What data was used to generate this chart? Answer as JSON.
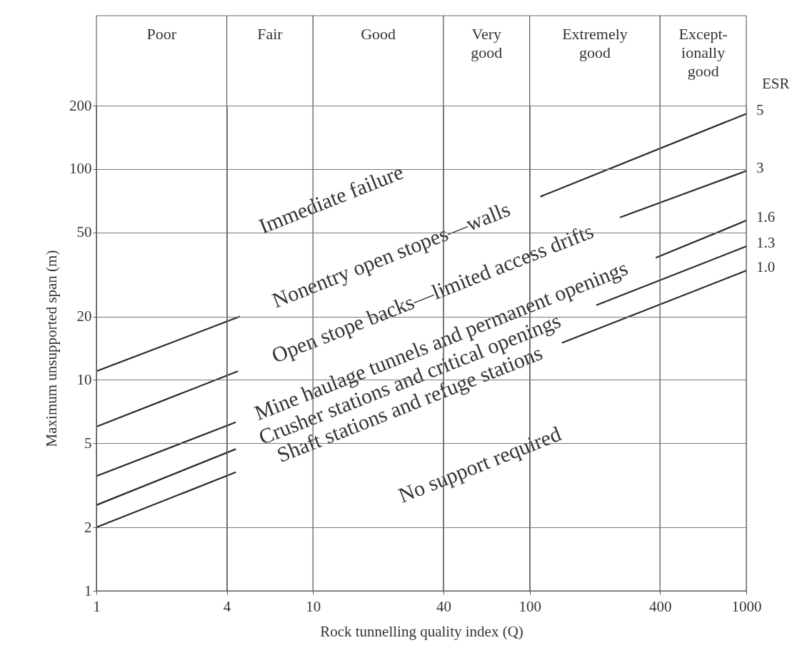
{
  "chart_data": {
    "type": "line",
    "xlabel": "Rock tunnelling quality index (Q)",
    "ylabel": "Maximum unsupported span (m)",
    "legend_title": "ESR",
    "log": "xy",
    "xlim": [
      1,
      1000
    ],
    "ylim": [
      1,
      200
    ],
    "xticks": [
      1,
      4,
      10,
      40,
      100,
      400,
      {
        "value": 1000,
        "label": "1000"
      }
    ],
    "yticks": [
      1,
      2,
      5,
      10,
      20,
      50,
      100,
      200
    ],
    "grid": true,
    "series": [
      {
        "name": "5",
        "color": "#2b2b2b",
        "x": [
          1,
          4.6,
          20,
          112,
          1000
        ],
        "values": [
          11,
          20,
          null,
          74,
          183
        ]
      },
      {
        "name": "3",
        "color": "#2b2b2b",
        "x": [
          1,
          4.5,
          20,
          261,
          1000
        ],
        "values": [
          6,
          11,
          null,
          59,
          98
        ]
      },
      {
        "name": "1.6",
        "color": "#2b2b2b",
        "x": [
          1,
          4.4,
          20,
          382,
          1000
        ],
        "values": [
          3.5,
          6.3,
          null,
          38,
          57
        ]
      },
      {
        "name": "1.3",
        "color": "#2b2b2b",
        "x": [
          1,
          4.4,
          20,
          203,
          1000
        ],
        "values": [
          2.55,
          4.7,
          null,
          22.6,
          43
        ]
      },
      {
        "name": "1.0",
        "color": "#2b2b2b",
        "x": [
          1,
          4.4,
          20,
          141,
          1000
        ],
        "values": [
          2,
          3.65,
          null,
          15,
          33
        ]
      }
    ],
    "annotations": [
      "Immediate failure",
      "Nonentry open stopes—walls",
      "Open stope backs—limited access drifts",
      "Mine haulage tunnels and permanent openings",
      "Crusher stations and critical openings",
      "Shaft stations and refuge stations",
      "No support required"
    ],
    "bands": [
      {
        "axis": "x",
        "from": 1,
        "to": 4,
        "label": "Poor"
      },
      {
        "axis": "x",
        "from": 4,
        "to": 10,
        "label": "Fair"
      },
      {
        "axis": "x",
        "from": 10,
        "to": 40,
        "label": "Good"
      },
      {
        "axis": "x",
        "from": 40,
        "to": 100,
        "label": "Very\ngood"
      },
      {
        "axis": "x",
        "from": 100,
        "to": 400,
        "label": "Extremely\ngood"
      },
      {
        "axis": "x",
        "from": 400,
        "to": 1000,
        "label": "Except-\nionally\ngood"
      }
    ]
  }
}
